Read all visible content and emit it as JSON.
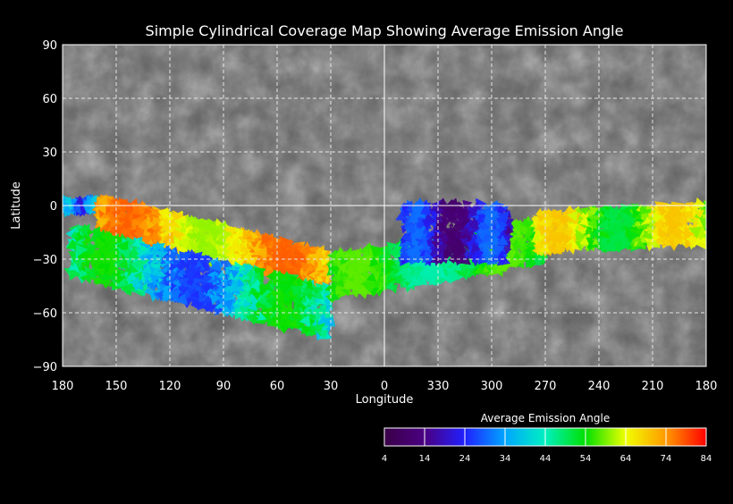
{
  "title": "Simple Cylindrical Coverage Map Showing Average Emission Angle",
  "axes": {
    "xlabel": "Longitude",
    "ylabel": "Latitude",
    "x_ticks": [
      "180",
      "150",
      "120",
      "90",
      "60",
      "30",
      "0",
      "330",
      "300",
      "270",
      "240",
      "210",
      "180"
    ],
    "y_ticks": [
      "90",
      "60",
      "30",
      "0",
      "−30",
      "−60",
      "−90"
    ],
    "grid": true
  },
  "colorbar": {
    "title": "Average Emission Angle",
    "ticks": [
      "4",
      "14",
      "24",
      "34",
      "44",
      "54",
      "64",
      "74",
      "84"
    ],
    "range": [
      4,
      84
    ]
  },
  "colors": {
    "background": "#000000",
    "grid_dashed": "#e6e6e6",
    "grid_solid": "#ffffff",
    "palette": [
      "#3a0048",
      "#4b0082",
      "#2020ff",
      "#00a6ff",
      "#00f0c0",
      "#00e000",
      "#f0ff00",
      "#ff9900",
      "#ff0000"
    ]
  },
  "chart_data": {
    "type": "map",
    "projection": "simple cylindrical",
    "x_range": [
      180,
      -180
    ],
    "y_range": [
      -90,
      90
    ],
    "coverage_bands": [
      {
        "lon": [
          178,
          160
        ],
        "lat": [
          3,
          -3
        ],
        "emission": [
          20,
          40
        ]
      },
      {
        "lon": [
          160,
          32
        ],
        "lat_center": [
          -5,
          -36
        ],
        "emission": [
          60,
          78
        ]
      },
      {
        "lon": [
          175,
          30
        ],
        "lat_center": [
          -25,
          -60
        ],
        "emission": [
          25,
          55
        ]
      },
      {
        "lon": [
          30,
          -90
        ],
        "lat_center": [
          -40,
          -20
        ],
        "emission": [
          45,
          58
        ]
      },
      {
        "lon": [
          -10,
          -70
        ],
        "lat_center": [
          -15,
          -15
        ],
        "emission": [
          10,
          30
        ]
      },
      {
        "lon": [
          -85,
          -180
        ],
        "lat_center": [
          -15,
          -10
        ],
        "emission": [
          50,
          70
        ]
      }
    ]
  }
}
